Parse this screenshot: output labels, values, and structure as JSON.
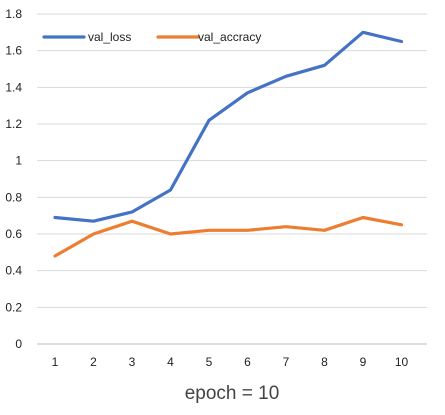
{
  "chart_data": {
    "type": "line",
    "title": "",
    "xlabel": "epoch = 10",
    "ylabel": "",
    "x": [
      1,
      2,
      3,
      4,
      5,
      6,
      7,
      8,
      9,
      10
    ],
    "ylim": [
      0,
      1.8
    ],
    "yticks": [
      0,
      0.2,
      0.4,
      0.6,
      0.8,
      1,
      1.2,
      1.4,
      1.6,
      1.8
    ],
    "ytick_labels": [
      "0",
      "0.2",
      "0.4",
      "0.6",
      "0.8",
      "1",
      "1.2",
      "1.4",
      "1.6",
      "1.8"
    ],
    "grid": "horizontal",
    "legend_position": "top-left",
    "series": [
      {
        "name": "val_loss",
        "color": "#4472C4",
        "values": [
          0.69,
          0.67,
          0.72,
          0.84,
          1.22,
          1.37,
          1.46,
          1.52,
          1.7,
          1.65
        ]
      },
      {
        "name": "val_accracy",
        "color": "#ED7D31",
        "values": [
          0.48,
          0.6,
          0.67,
          0.6,
          0.62,
          0.62,
          0.64,
          0.62,
          0.69,
          0.65
        ]
      }
    ]
  }
}
